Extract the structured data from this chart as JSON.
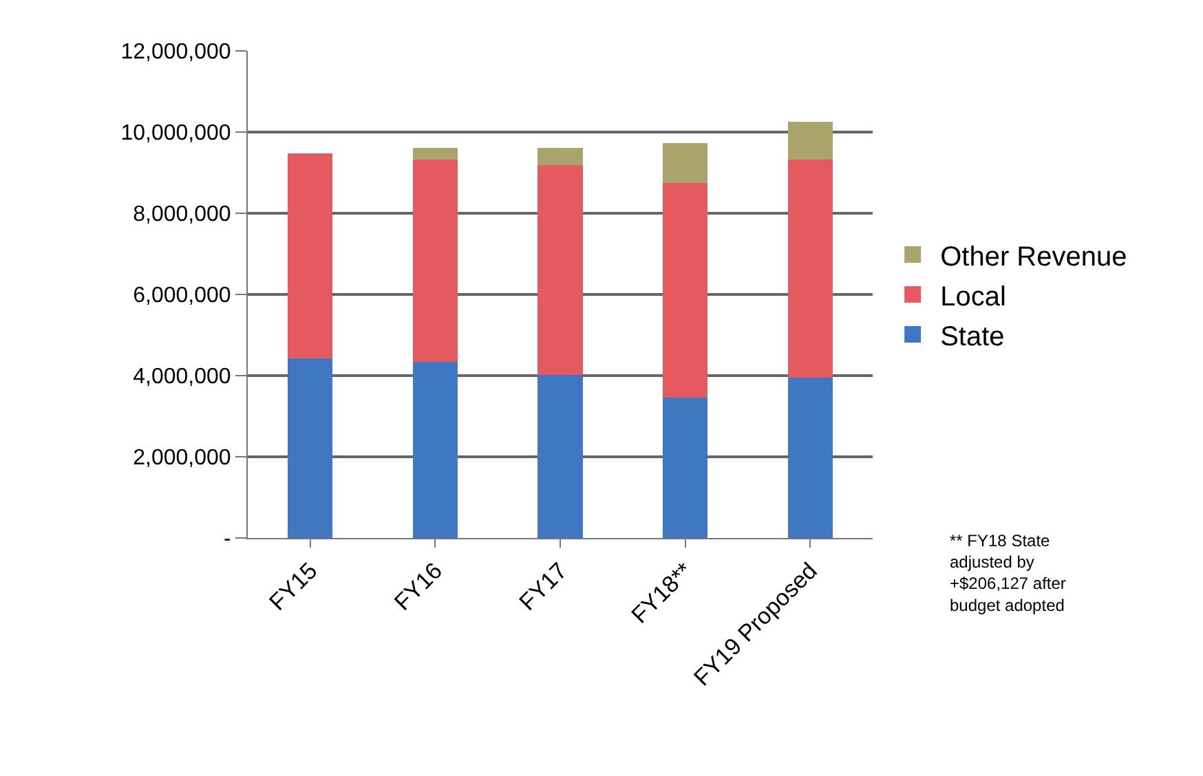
{
  "chart_data": {
    "type": "bar",
    "stacked": true,
    "categories": [
      "FY15",
      "FY16",
      "FY17",
      "FY18**",
      "FY19 Proposed"
    ],
    "series": [
      {
        "name": "State",
        "color": "#3f78c0",
        "values": [
          4420000,
          4340000,
          4020000,
          3460000,
          3950000
        ]
      },
      {
        "name": "Local",
        "color": "#e45a5e",
        "values": [
          5050000,
          4990000,
          5160000,
          5280000,
          5380000
        ]
      },
      {
        "name": "Other Revenue",
        "color": "#a9a46c",
        "values": [
          0,
          280000,
          430000,
          990000,
          930000
        ]
      }
    ],
    "ylim": [
      0,
      12000000
    ],
    "yticks": [
      {
        "value": 0,
        "label": "-"
      },
      {
        "value": 2000000,
        "label": "2,000,000"
      },
      {
        "value": 4000000,
        "label": "4,000,000"
      },
      {
        "value": 6000000,
        "label": "6,000,000"
      },
      {
        "value": 8000000,
        "label": "8,000,000"
      },
      {
        "value": 10000000,
        "label": "10,000,000"
      },
      {
        "value": 12000000,
        "label": "12,000,000"
      }
    ],
    "grid": "y",
    "legend": "right",
    "annotations": [
      "** FY18 State adjusted by +$206,127 after budget adopted"
    ]
  }
}
